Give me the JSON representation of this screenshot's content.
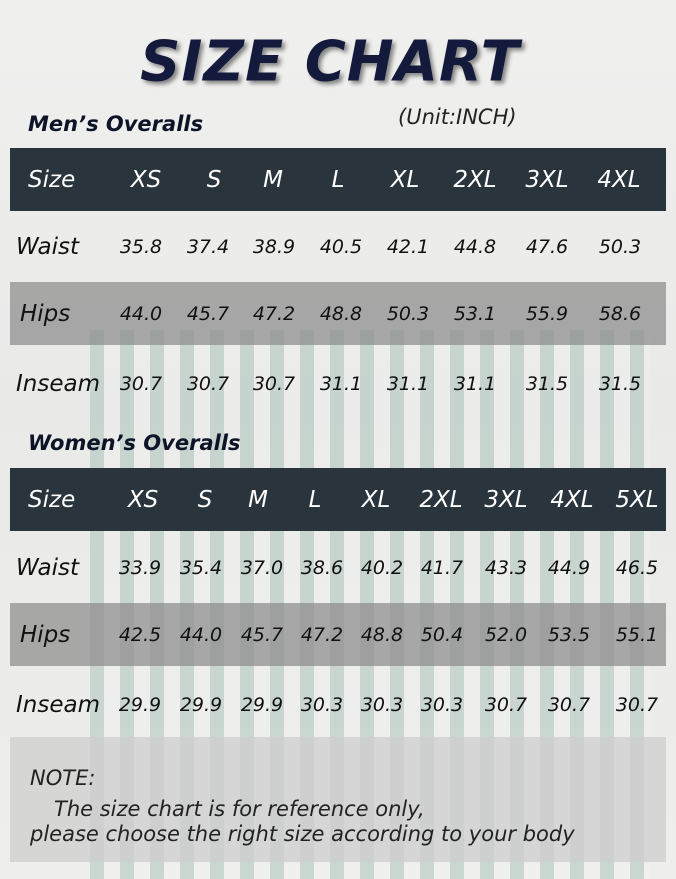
{
  "header": {
    "title": "SIZE CHART",
    "unit": "(Unit:INCH)"
  },
  "tables": [
    {
      "title": "Men’s Overalls",
      "columns": [
        "Size",
        "XS",
        "S",
        "M",
        "L",
        "XL",
        "2XL",
        "3XL",
        "4XL"
      ],
      "rows": [
        [
          "Waist",
          "35.8",
          "37.4",
          "38.9",
          "40.5",
          "42.1",
          "44.8",
          "47.6",
          "50.3"
        ],
        [
          "Hips",
          "44.0",
          "45.7",
          "47.2",
          "48.8",
          "50.3",
          "53.1",
          "55.9",
          "58.6"
        ],
        [
          "Inseam",
          "30.7",
          "30.7",
          "30.7",
          "31.1",
          "31.1",
          "31.1",
          "31.5",
          "31.5"
        ]
      ]
    },
    {
      "title": "Women’s Overalls",
      "columns": [
        "Size",
        "XS",
        "S",
        "M",
        "L",
        "XL",
        "2XL",
        "3XL",
        "4XL",
        "5XL"
      ],
      "rows": [
        [
          "Waist",
          "33.9",
          "35.4",
          "37.0",
          "38.6",
          "40.2",
          "41.7",
          "43.3",
          "44.9",
          "46.5"
        ],
        [
          "Hips",
          "42.5",
          "44.0",
          "45.7",
          "47.2",
          "48.8",
          "50.4",
          "52.0",
          "53.5",
          "55.1"
        ],
        [
          "Inseam",
          "29.9",
          "29.9",
          "29.9",
          "30.3",
          "30.3",
          "30.3",
          "30.7",
          "30.7",
          "30.7"
        ]
      ]
    }
  ],
  "note": {
    "heading": "NOTE:",
    "lines": [
      "The size chart is for reference only,",
      "please choose the right size according to your body"
    ]
  }
}
